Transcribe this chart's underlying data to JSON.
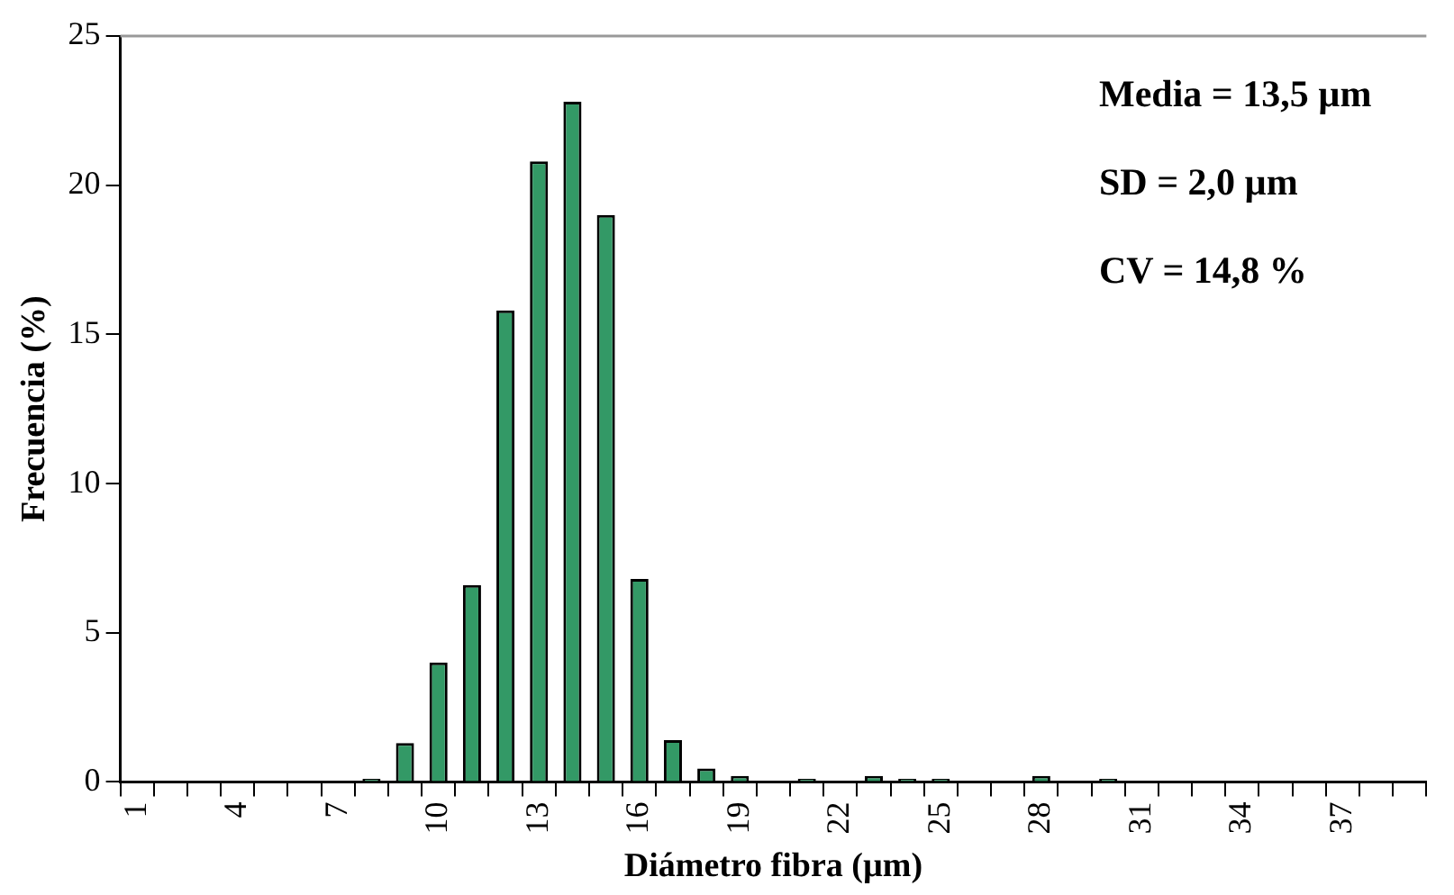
{
  "chart_data": {
    "type": "bar",
    "xlabel": "Diámetro fibra (µm)",
    "ylabel": "Frecuencia (%)",
    "categories": [
      "1",
      null,
      null,
      "4",
      null,
      null,
      "7",
      null,
      null,
      "10",
      null,
      null,
      "13",
      null,
      null,
      "16",
      null,
      null,
      "19",
      null,
      null,
      "22",
      null,
      null,
      "25",
      null,
      null,
      "28",
      null,
      null,
      "31",
      null,
      null,
      "34",
      null,
      null,
      "37",
      null,
      null
    ],
    "values": [
      0,
      0,
      0,
      0,
      0,
      0,
      0,
      0.1,
      1.3,
      4.0,
      6.6,
      15.8,
      20.8,
      22.8,
      19.0,
      6.8,
      1.4,
      0.45,
      0.2,
      0,
      0.1,
      0,
      0.2,
      0.1,
      0.1,
      0,
      0,
      0.2,
      0,
      0.1,
      0,
      0,
      0,
      0,
      0,
      0,
      0,
      0,
      0
    ],
    "color": "#339966",
    "ylim": [
      0,
      25
    ],
    "yticks": [
      0,
      5,
      10,
      15,
      20,
      25
    ],
    "grid": false,
    "legend": false,
    "annotations": [
      "Media = 13,5 µm",
      "SD = 2,0 µm",
      "CV = 14,8 %"
    ]
  }
}
